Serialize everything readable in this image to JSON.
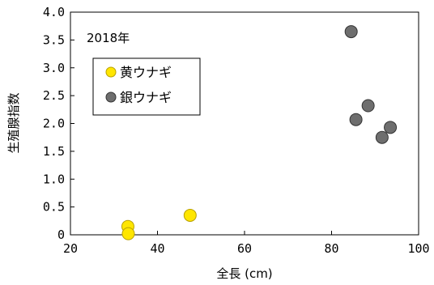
{
  "chart_data": {
    "type": "scatter",
    "annotation": "2018年",
    "xlabel": "全長 (cm)",
    "ylabel": "生殖腺指数",
    "xlim": [
      20,
      100
    ],
    "ylim": [
      0,
      4.0
    ],
    "x_ticks": [
      "20",
      "40",
      "60",
      "80",
      "100"
    ],
    "y_ticks": [
      "0",
      "0.5",
      "1.0",
      "1.5",
      "2.0",
      "2.5",
      "3.0",
      "3.5",
      "4.0"
    ],
    "x_tick_values": [
      20,
      40,
      60,
      80,
      100
    ],
    "y_tick_values": [
      0,
      0.5,
      1.0,
      1.5,
      2.0,
      2.5,
      3.0,
      3.5,
      4.0
    ],
    "grid": false,
    "legend_position": "upper-left",
    "series": [
      {
        "name": "黄ウナギ",
        "color": "#FFE600",
        "points": [
          [
            33.2,
            0.15
          ],
          [
            33.3,
            0.02
          ],
          [
            47.5,
            0.35
          ]
        ]
      },
      {
        "name": "銀ウナギ",
        "color": "#6E6E6E",
        "points": [
          [
            84.5,
            3.65
          ],
          [
            85.6,
            2.07
          ],
          [
            88.4,
            2.32
          ],
          [
            91.6,
            1.75
          ],
          [
            93.5,
            1.93
          ]
        ]
      }
    ]
  }
}
